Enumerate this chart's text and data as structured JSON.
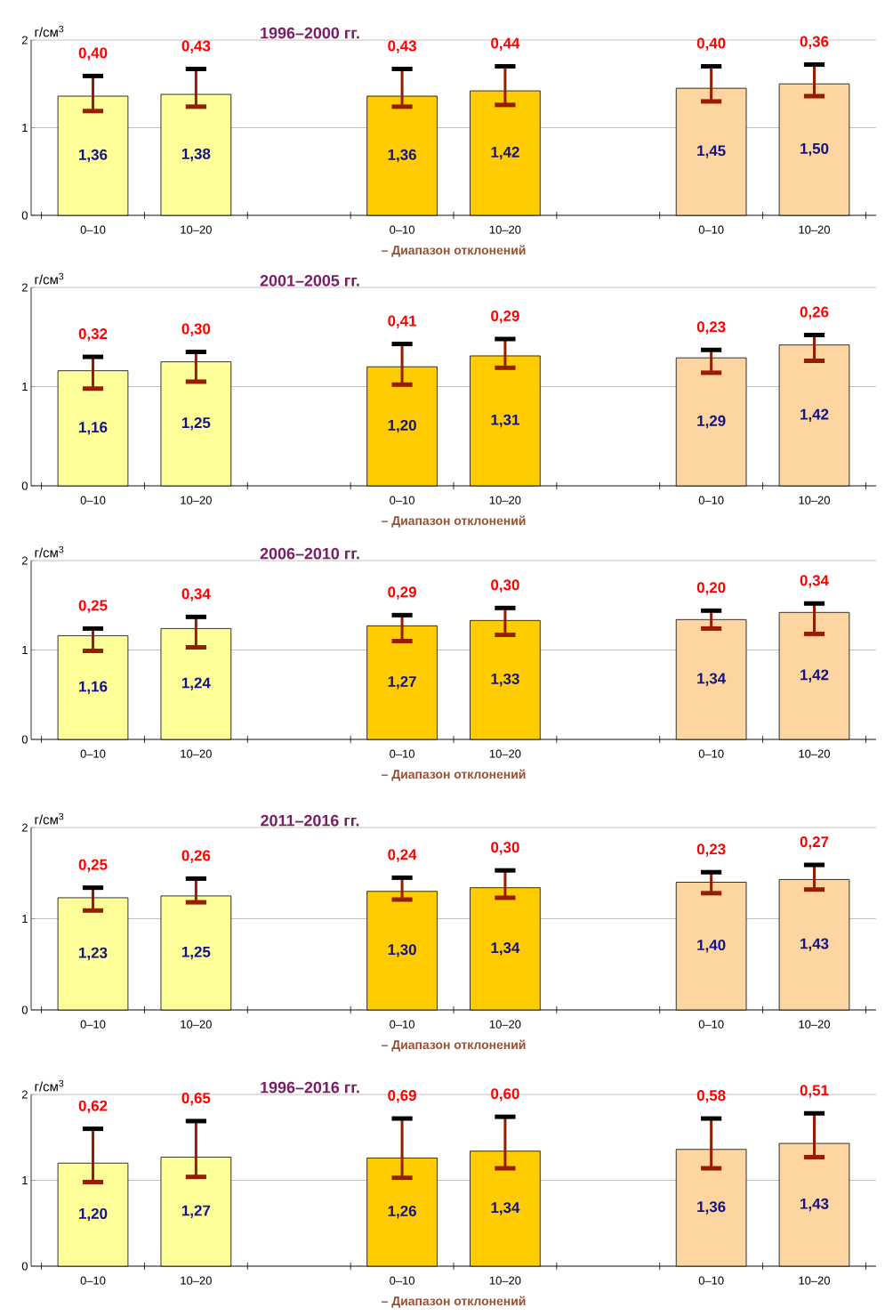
{
  "chart_data": [
    {
      "type": "bar",
      "title": "1996–2000 гг.",
      "ylabel": "г/см$^{3}$",
      "grid": "y",
      "ylim": [
        0,
        2
      ],
      "yticks": [
        0,
        1,
        2
      ],
      "categories": [
        "0–10",
        "10–20",
        null,
        "0–10",
        "10–20",
        null,
        "0–10",
        "10–20"
      ],
      "values": [
        1.36,
        1.38,
        null,
        1.36,
        1.42,
        null,
        1.45,
        1.5
      ],
      "colors": [
        "#ffff99",
        "#ffff99",
        null,
        "#ffcc00",
        "#ffcc00",
        null,
        "#fcd5a0",
        "#fcd5a0"
      ],
      "errors": [
        [
          1.19,
          1.59
        ],
        [
          1.24,
          1.67
        ],
        null,
        [
          1.24,
          1.67
        ],
        [
          1.26,
          1.7
        ],
        null,
        [
          1.3,
          1.7
        ],
        [
          1.36,
          1.72
        ]
      ],
      "value_labels": [
        "1,36",
        "1,38",
        null,
        "1,36",
        "1,42",
        null,
        "1,45",
        "1,50"
      ],
      "annotations": [
        {
          "text": "0,40",
          "y": 1.59
        },
        {
          "text": "0,43",
          "y": 1.67
        },
        {
          "text": "0,43",
          "y": 1.67
        },
        {
          "text": "0,44",
          "y": 1.7
        },
        {
          "text": "0,40",
          "y": 1.7
        },
        {
          "text": "0,36",
          "y": 1.72
        },
        "– Диапазон отклонений"
      ]
    },
    {
      "type": "bar",
      "title": "2001–2005 гг.",
      "ylabel": "г/см$^{3}$",
      "grid": "y",
      "ylim": [
        0,
        2
      ],
      "yticks": [
        0,
        1,
        2
      ],
      "categories": [
        "0–10",
        "10–20",
        null,
        "0–10",
        "10–20",
        null,
        "0–10",
        "10–20"
      ],
      "values": [
        1.16,
        1.25,
        null,
        1.2,
        1.31,
        null,
        1.29,
        1.42
      ],
      "colors": [
        "#ffff99",
        "#ffff99",
        null,
        "#ffcc00",
        "#ffcc00",
        null,
        "#fcd5a0",
        "#fcd5a0"
      ],
      "errors": [
        [
          0.98,
          1.3
        ],
        [
          1.05,
          1.35
        ],
        null,
        [
          1.02,
          1.43
        ],
        [
          1.19,
          1.48
        ],
        null,
        [
          1.14,
          1.37
        ],
        [
          1.26,
          1.52
        ]
      ],
      "value_labels": [
        "1,16",
        "1,25",
        null,
        "1,20",
        "1,31",
        null,
        "1,29",
        "1,42"
      ],
      "annotations": [
        {
          "text": "0,32",
          "y": 1.3
        },
        {
          "text": "0,30",
          "y": 1.35
        },
        {
          "text": "0,41",
          "y": 1.43
        },
        {
          "text": "0,29",
          "y": 1.48
        },
        {
          "text": "0,23",
          "y": 1.37
        },
        {
          "text": "0,26",
          "y": 1.52
        },
        "– Диапазон отклонений"
      ]
    },
    {
      "type": "bar",
      "title": "2006–2010 гг.",
      "ylabel": "г/см$^{3}$",
      "grid": "y",
      "ylim": [
        0,
        2
      ],
      "yticks": [
        0,
        1,
        2
      ],
      "categories": [
        "0–10",
        "10–20",
        null,
        "0–10",
        "10–20",
        null,
        "0–10",
        "10–20"
      ],
      "values": [
        1.16,
        1.24,
        null,
        1.27,
        1.33,
        null,
        1.34,
        1.42
      ],
      "colors": [
        "#ffff99",
        "#ffff99",
        null,
        "#ffcc00",
        "#ffcc00",
        null,
        "#fcd5a0",
        "#fcd5a0"
      ],
      "errors": [
        [
          0.99,
          1.24
        ],
        [
          1.03,
          1.37
        ],
        null,
        [
          1.1,
          1.39
        ],
        [
          1.17,
          1.47
        ],
        null,
        [
          1.24,
          1.44
        ],
        [
          1.18,
          1.52
        ]
      ],
      "value_labels": [
        "1,16",
        "1,24",
        null,
        "1,27",
        "1,33",
        null,
        "1,34",
        "1,42"
      ],
      "annotations": [
        {
          "text": "0,25",
          "y": 1.24
        },
        {
          "text": "0,34",
          "y": 1.37
        },
        {
          "text": "0,29",
          "y": 1.39
        },
        {
          "text": "0,30",
          "y": 1.47
        },
        {
          "text": "0,20",
          "y": 1.44
        },
        {
          "text": "0,34",
          "y": 1.52
        },
        "– Диапазон отклонений"
      ]
    },
    {
      "type": "bar",
      "title": "2011–2016 гг.",
      "ylabel": "г/см$^{3}$",
      "grid": "y",
      "ylim": [
        0,
        2
      ],
      "yticks": [
        0,
        1,
        2
      ],
      "categories": [
        "0–10",
        "10–20",
        null,
        "0–10",
        "10–20",
        null,
        "0–10",
        "10–20"
      ],
      "values": [
        1.23,
        1.25,
        null,
        1.3,
        1.34,
        null,
        1.4,
        1.43
      ],
      "colors": [
        "#ffff99",
        "#ffff99",
        null,
        "#ffcc00",
        "#ffcc00",
        null,
        "#fcd5a0",
        "#fcd5a0"
      ],
      "errors": [
        [
          1.09,
          1.34
        ],
        [
          1.18,
          1.44
        ],
        null,
        [
          1.21,
          1.45
        ],
        [
          1.23,
          1.53
        ],
        null,
        [
          1.28,
          1.51
        ],
        [
          1.32,
          1.59
        ]
      ],
      "value_labels": [
        "1,23",
        "1,25",
        null,
        "1,30",
        "1,34",
        null,
        "1,40",
        "1,43"
      ],
      "annotations": [
        {
          "text": "0,25",
          "y": 1.34
        },
        {
          "text": "0,26",
          "y": 1.44
        },
        {
          "text": "0,24",
          "y": 1.45
        },
        {
          "text": "0,30",
          "y": 1.53
        },
        {
          "text": "0,23",
          "y": 1.51
        },
        {
          "text": "0,27",
          "y": 1.59
        },
        "– Диапазон отклонений"
      ]
    },
    {
      "type": "bar",
      "title": "1996–2016 гг.",
      "ylabel": "г/см$^{3}$",
      "grid": "y",
      "ylim": [
        0,
        2
      ],
      "yticks": [
        0,
        1,
        2
      ],
      "categories": [
        "0–10",
        "10–20",
        null,
        "0–10",
        "10–20",
        null,
        "0–10",
        "10–20"
      ],
      "values": [
        1.2,
        1.27,
        null,
        1.26,
        1.34,
        null,
        1.36,
        1.43
      ],
      "colors": [
        "#ffff99",
        "#ffff99",
        null,
        "#ffcc00",
        "#ffcc00",
        null,
        "#fcd5a0",
        "#fcd5a0"
      ],
      "errors": [
        [
          0.98,
          1.6
        ],
        [
          1.04,
          1.69
        ],
        null,
        [
          1.03,
          1.72
        ],
        [
          1.14,
          1.74
        ],
        null,
        [
          1.14,
          1.72
        ],
        [
          1.27,
          1.78
        ]
      ],
      "value_labels": [
        "1,20",
        "1,27",
        null,
        "1,26",
        "1,34",
        null,
        "1,36",
        "1,43"
      ],
      "annotations": [
        {
          "text": "0,62",
          "y": 1.6
        },
        {
          "text": "0,65",
          "y": 1.69
        },
        {
          "text": "0,69",
          "y": 1.72
        },
        {
          "text": "0,60",
          "y": 1.74
        },
        {
          "text": "0,58",
          "y": 1.72
        },
        {
          "text": "0,51",
          "y": 1.78
        },
        "– Диапазон отклонений"
      ]
    }
  ]
}
